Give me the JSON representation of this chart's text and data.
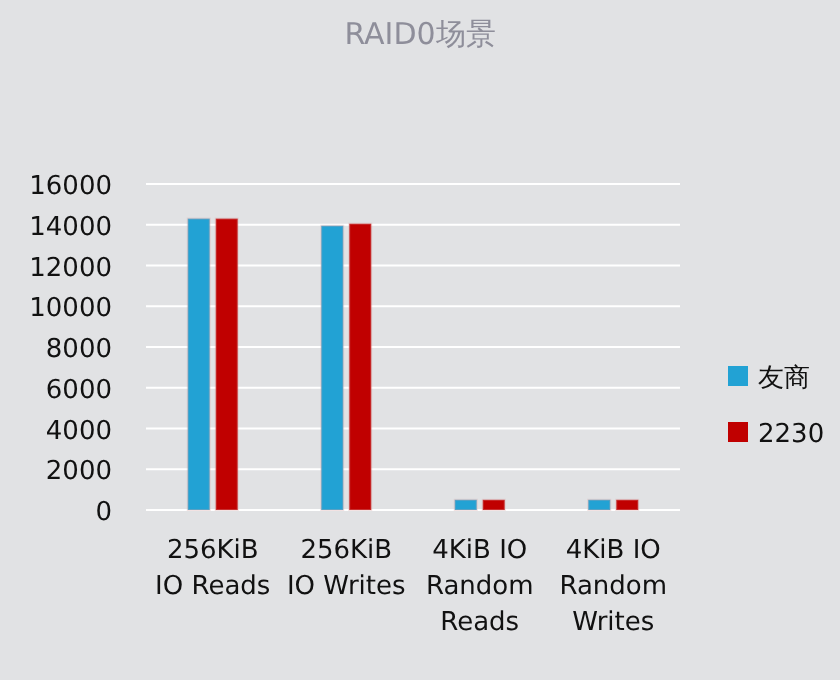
{
  "chart_data": {
    "type": "bar",
    "title": "RAID0场景",
    "categories": [
      "256KiB\nIO Reads",
      "256KiB\nIO Writes",
      "4KiB IO\nRandom\nReads",
      "4KiB IO\nRandom\nWrites"
    ],
    "series": [
      {
        "name": "友商",
        "color": "#22a2d4",
        "values": [
          14300,
          13950,
          500,
          500
        ]
      },
      {
        "name": "2230",
        "color": "#c00000",
        "values": [
          14300,
          14050,
          500,
          500
        ]
      }
    ],
    "ylim": [
      0,
      16000
    ],
    "yticks": [
      0,
      2000,
      4000,
      6000,
      8000,
      10000,
      12000,
      14000,
      16000
    ],
    "grid": "y",
    "legend": "right"
  }
}
